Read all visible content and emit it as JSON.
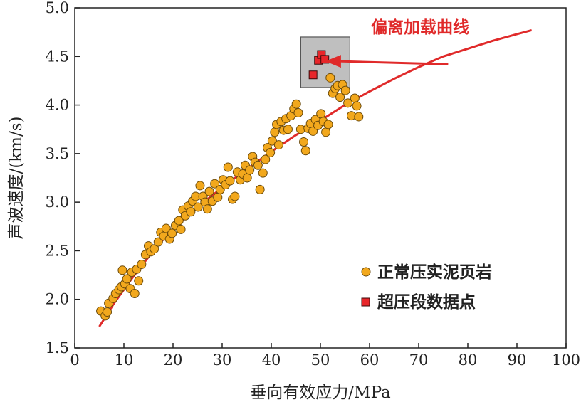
{
  "colors": {
    "normal": "#f2a81d",
    "normal_stroke": "#6b4a0a",
    "overpressure": "#e8262a",
    "overpressure_stroke": "#3a0a0a",
    "curve": "#e02a2a",
    "box_fill": "#bfbfbf",
    "box_stroke": "#555555",
    "axis": "#222222"
  },
  "chart_data": {
    "type": "scatter",
    "xlabel": "垂向有效应力/MPa",
    "ylabel": "声波速度/(km/s)",
    "xlim": [
      0,
      100
    ],
    "ylim": [
      1.5,
      5.0
    ],
    "xticks": [
      "0",
      "10",
      "20",
      "30",
      "40",
      "50",
      "60",
      "70",
      "80",
      "90",
      "100"
    ],
    "yticks": [
      "1.5",
      "2.0",
      "2.5",
      "3.0",
      "3.5",
      "4.0",
      "4.5",
      "5.0"
    ],
    "legend_position": "bottom-right",
    "annotation": {
      "text": "偏离加载曲线",
      "arrow_from": [
        76,
        4.42
      ],
      "arrow_to": [
        51,
        4.45
      ]
    },
    "highlight_box": {
      "x": [
        46,
        56
      ],
      "y": [
        4.18,
        4.7
      ]
    },
    "series": [
      {
        "name": "正常压实泥页岩",
        "marker": "circle",
        "points": [
          [
            5.3,
            1.88
          ],
          [
            6.2,
            1.83
          ],
          [
            6.6,
            1.87
          ],
          [
            6.9,
            1.96
          ],
          [
            7.8,
            2.01
          ],
          [
            8.3,
            2.06
          ],
          [
            9.0,
            2.1
          ],
          [
            9.5,
            2.13
          ],
          [
            10.2,
            2.16
          ],
          [
            9.7,
            2.3
          ],
          [
            10.6,
            2.21
          ],
          [
            11.3,
            2.11
          ],
          [
            11.6,
            2.28
          ],
          [
            12.2,
            2.06
          ],
          [
            12.6,
            2.31
          ],
          [
            13.0,
            2.19
          ],
          [
            13.6,
            2.36
          ],
          [
            14.4,
            2.46
          ],
          [
            15.0,
            2.55
          ],
          [
            15.5,
            2.49
          ],
          [
            16.2,
            2.52
          ],
          [
            17.0,
            2.59
          ],
          [
            17.5,
            2.69
          ],
          [
            18.1,
            2.65
          ],
          [
            18.6,
            2.73
          ],
          [
            19.3,
            2.62
          ],
          [
            19.8,
            2.68
          ],
          [
            20.5,
            2.76
          ],
          [
            21.2,
            2.81
          ],
          [
            21.6,
            2.72
          ],
          [
            22.0,
            2.92
          ],
          [
            22.5,
            2.86
          ],
          [
            23.1,
            2.96
          ],
          [
            23.6,
            2.9
          ],
          [
            24.0,
            3.01
          ],
          [
            24.6,
            3.06
          ],
          [
            25.1,
            2.95
          ],
          [
            25.5,
            3.17
          ],
          [
            26.1,
            3.06
          ],
          [
            26.5,
            3.0
          ],
          [
            27.0,
            2.93
          ],
          [
            27.4,
            3.11
          ],
          [
            28.0,
            3.01
          ],
          [
            28.5,
            3.19
          ],
          [
            29.1,
            3.05
          ],
          [
            29.6,
            3.13
          ],
          [
            30.2,
            3.23
          ],
          [
            30.7,
            3.18
          ],
          [
            31.2,
            3.36
          ],
          [
            31.6,
            3.22
          ],
          [
            32.1,
            3.03
          ],
          [
            32.6,
            3.06
          ],
          [
            33.1,
            3.31
          ],
          [
            33.7,
            3.23
          ],
          [
            34.2,
            3.29
          ],
          [
            34.7,
            3.38
          ],
          [
            35.1,
            3.25
          ],
          [
            35.6,
            3.33
          ],
          [
            36.2,
            3.47
          ],
          [
            36.7,
            3.41
          ],
          [
            37.3,
            3.38
          ],
          [
            37.7,
            3.13
          ],
          [
            38.3,
            3.3
          ],
          [
            38.8,
            3.44
          ],
          [
            39.2,
            3.56
          ],
          [
            39.8,
            3.51
          ],
          [
            40.2,
            3.63
          ],
          [
            40.7,
            3.72
          ],
          [
            41.1,
            3.8
          ],
          [
            41.5,
            3.59
          ],
          [
            42.0,
            3.83
          ],
          [
            42.5,
            3.74
          ],
          [
            43.0,
            3.86
          ],
          [
            43.4,
            3.75
          ],
          [
            44.0,
            3.89
          ],
          [
            44.6,
            3.96
          ],
          [
            45.1,
            4.01
          ],
          [
            45.5,
            3.92
          ],
          [
            46.0,
            3.75
          ],
          [
            46.6,
            3.62
          ],
          [
            47.0,
            3.53
          ],
          [
            47.5,
            3.76
          ],
          [
            48.0,
            3.81
          ],
          [
            48.5,
            3.73
          ],
          [
            49.0,
            3.85
          ],
          [
            49.5,
            3.79
          ],
          [
            50.1,
            3.91
          ],
          [
            50.6,
            3.83
          ],
          [
            51.1,
            3.72
          ],
          [
            51.6,
            3.8
          ],
          [
            52.0,
            4.28
          ],
          [
            52.5,
            4.12
          ],
          [
            53.0,
            4.17
          ],
          [
            53.5,
            4.2
          ],
          [
            54.0,
            4.08
          ],
          [
            54.5,
            4.21
          ],
          [
            55.1,
            4.15
          ],
          [
            55.6,
            4.02
          ],
          [
            56.3,
            3.89
          ],
          [
            57.0,
            4.07
          ],
          [
            57.4,
            3.99
          ],
          [
            57.8,
            3.88
          ]
        ]
      },
      {
        "name": "超压段数据点",
        "marker": "square",
        "points": [
          [
            48.5,
            4.31
          ],
          [
            49.6,
            4.46
          ],
          [
            50.2,
            4.52
          ],
          [
            50.9,
            4.47
          ]
        ]
      }
    ],
    "loading_curve": [
      [
        5,
        1.72
      ],
      [
        8,
        1.96
      ],
      [
        12,
        2.24
      ],
      [
        16,
        2.5
      ],
      [
        20,
        2.73
      ],
      [
        25,
        2.95
      ],
      [
        30,
        3.15
      ],
      [
        35,
        3.34
      ],
      [
        40,
        3.52
      ],
      [
        45,
        3.69
      ],
      [
        50,
        3.84
      ],
      [
        55,
        4.0
      ],
      [
        60,
        4.14
      ],
      [
        65,
        4.27
      ],
      [
        70,
        4.39
      ],
      [
        75,
        4.5
      ],
      [
        80,
        4.58
      ],
      [
        85,
        4.66
      ],
      [
        90,
        4.73
      ],
      [
        93,
        4.77
      ]
    ]
  }
}
